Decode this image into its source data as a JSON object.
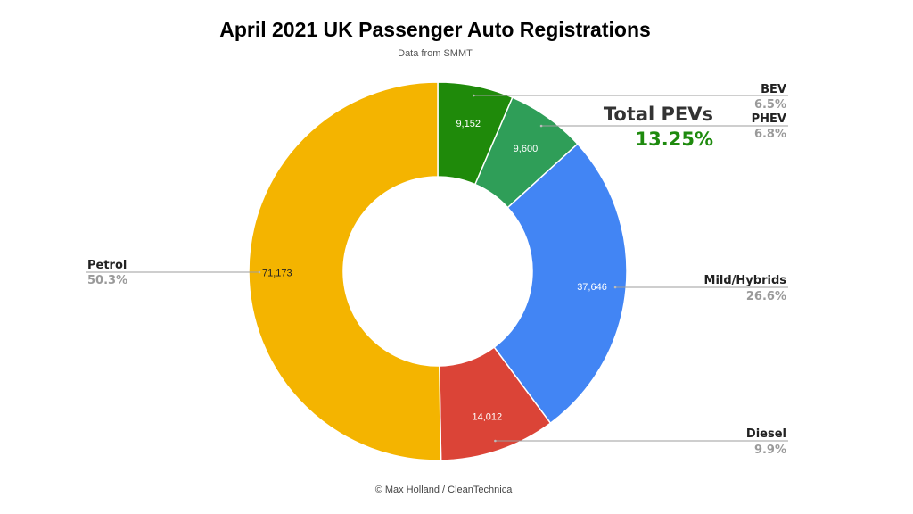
{
  "chart_data": {
    "type": "pie",
    "variant": "donut",
    "title": "April 2021 UK Passenger Auto Registrations",
    "subtitle": "Data from SMMT",
    "legend": "callouts",
    "slices": [
      {
        "name": "BEV",
        "value": 9152,
        "value_label": "9,152",
        "percent": "6.5%",
        "color": "#1f8a0a",
        "value_color": "#ffffff"
      },
      {
        "name": "PHEV",
        "value": 9600,
        "value_label": "9,600",
        "percent": "6.8%",
        "color": "#2f9e58",
        "value_color": "#ffffff"
      },
      {
        "name": "Mild/Hybrids",
        "value": 37646,
        "value_label": "37,646",
        "percent": "26.6%",
        "color": "#4285f4",
        "value_color": "#ffffff"
      },
      {
        "name": "Diesel",
        "value": 14012,
        "value_label": "14,012",
        "percent": "9.9%",
        "color": "#db4437",
        "value_color": "#ffffff"
      },
      {
        "name": "Petrol",
        "value": 71173,
        "value_label": "71,173",
        "percent": "50.3%",
        "color": "#f4b400",
        "value_color": "#222222"
      }
    ],
    "annotation": {
      "title": "Total PEVs",
      "value": "13.25%"
    }
  },
  "credit": "© Max Holland / CleanTechnica"
}
